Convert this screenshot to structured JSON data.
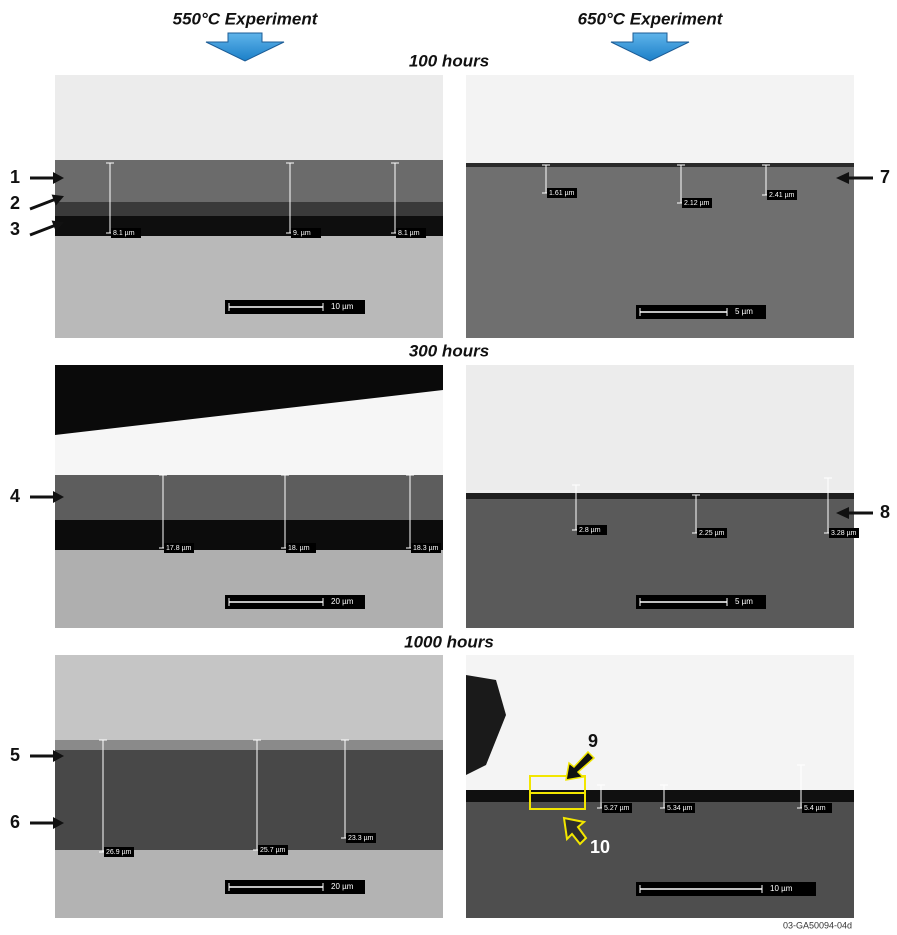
{
  "columns": [
    "550°C Experiment",
    "650°C Experiment"
  ],
  "rows": [
    {
      "time": "100 hours",
      "left": {
        "measurements": [
          "8.1 µm",
          "9. µm",
          "8.1 µm"
        ],
        "scale": "10 µm"
      },
      "right": {
        "measurements": [
          "1.61 µm",
          "2.12 µm",
          "2.41 µm"
        ],
        "scale": "5 µm"
      }
    },
    {
      "time": "300 hours",
      "left": {
        "measurements": [
          "17.8 µm",
          "18. µm",
          "18.3 µm"
        ],
        "scale": "20 µm"
      },
      "right": {
        "measurements": [
          "2.8 µm",
          "2.25 µm",
          "3.28 µm"
        ],
        "scale": "5 µm"
      }
    },
    {
      "time": "1000 hours",
      "left": {
        "measurements": [
          "26.9 µm",
          "25.7 µm",
          "23.3 µm"
        ],
        "scale": "20 µm"
      },
      "right": {
        "measurements": [
          "5.27 µm",
          "5.34 µm",
          "5.4 µm"
        ],
        "scale": "10 µm"
      }
    }
  ],
  "markers": [
    "1",
    "2",
    "3",
    "4",
    "5",
    "6",
    "7",
    "8",
    "9",
    "10"
  ],
  "figure_id": "03-GA50094-04d"
}
